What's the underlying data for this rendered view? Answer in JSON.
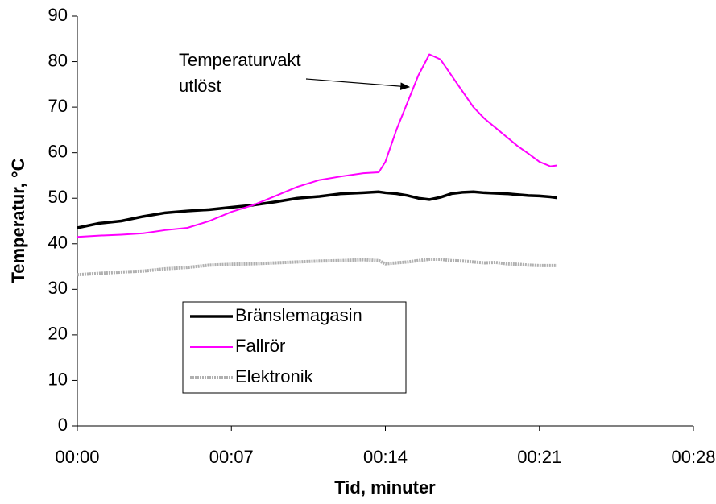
{
  "chart_data": {
    "type": "line",
    "xlabel": "Tid, minuter",
    "ylabel": "Temperatur, °C",
    "annotation": [
      "Temperaturvakt",
      "utlöst"
    ],
    "x": [
      0,
      1,
      2,
      3,
      4,
      5,
      6,
      7,
      8,
      9,
      10,
      11,
      12,
      13,
      13.7,
      14,
      14.5,
      15,
      15.5,
      16,
      16.5,
      17,
      17.5,
      18,
      18.5,
      19,
      19.5,
      20,
      20.5,
      21,
      21.5,
      21.8
    ],
    "series": [
      {
        "name": "Bränslemagasin",
        "color": "#000000",
        "values": [
          43.5,
          44.5,
          45,
          46,
          46.8,
          47.2,
          47.5,
          48,
          48.5,
          49.2,
          50,
          50.4,
          51,
          51.2,
          51.4,
          51.2,
          51,
          50.6,
          50,
          49.7,
          50.2,
          51,
          51.3,
          51.4,
          51.2,
          51.1,
          51,
          50.8,
          50.6,
          50.5,
          50.3,
          50.1
        ]
      },
      {
        "name": "Fallrör",
        "color": "#ff00ff",
        "values": [
          41.5,
          41.8,
          42,
          42.3,
          43,
          43.5,
          45,
          47,
          48.5,
          50.5,
          52.5,
          54,
          54.8,
          55.5,
          55.7,
          58,
          65,
          71,
          77,
          81.6,
          80.5,
          77,
          73.5,
          70,
          67.5,
          65.5,
          63.5,
          61.5,
          59.8,
          58,
          57,
          57.2
        ]
      },
      {
        "name": "Elektronik",
        "color": "#b0b0b0",
        "values": [
          33.2,
          33.5,
          33.8,
          34,
          34.5,
          34.8,
          35.3,
          35.5,
          35.6,
          35.8,
          36,
          36.2,
          36.3,
          36.5,
          36.3,
          35.6,
          35.8,
          36,
          36.3,
          36.6,
          36.6,
          36.3,
          36.2,
          36,
          35.8,
          35.9,
          35.6,
          35.5,
          35.3,
          35.2,
          35.2,
          35.2
        ]
      }
    ],
    "xlim": [
      0,
      28
    ],
    "xticks": [
      {
        "value": 0,
        "label": "00:00"
      },
      {
        "value": 7,
        "label": "00:07"
      },
      {
        "value": 14,
        "label": "00:14"
      },
      {
        "value": 21,
        "label": "00:21"
      },
      {
        "value": 28,
        "label": "00:28"
      }
    ],
    "ylim": [
      0,
      90
    ],
    "yticks": [
      0,
      10,
      20,
      30,
      40,
      50,
      60,
      70,
      80,
      90
    ]
  }
}
